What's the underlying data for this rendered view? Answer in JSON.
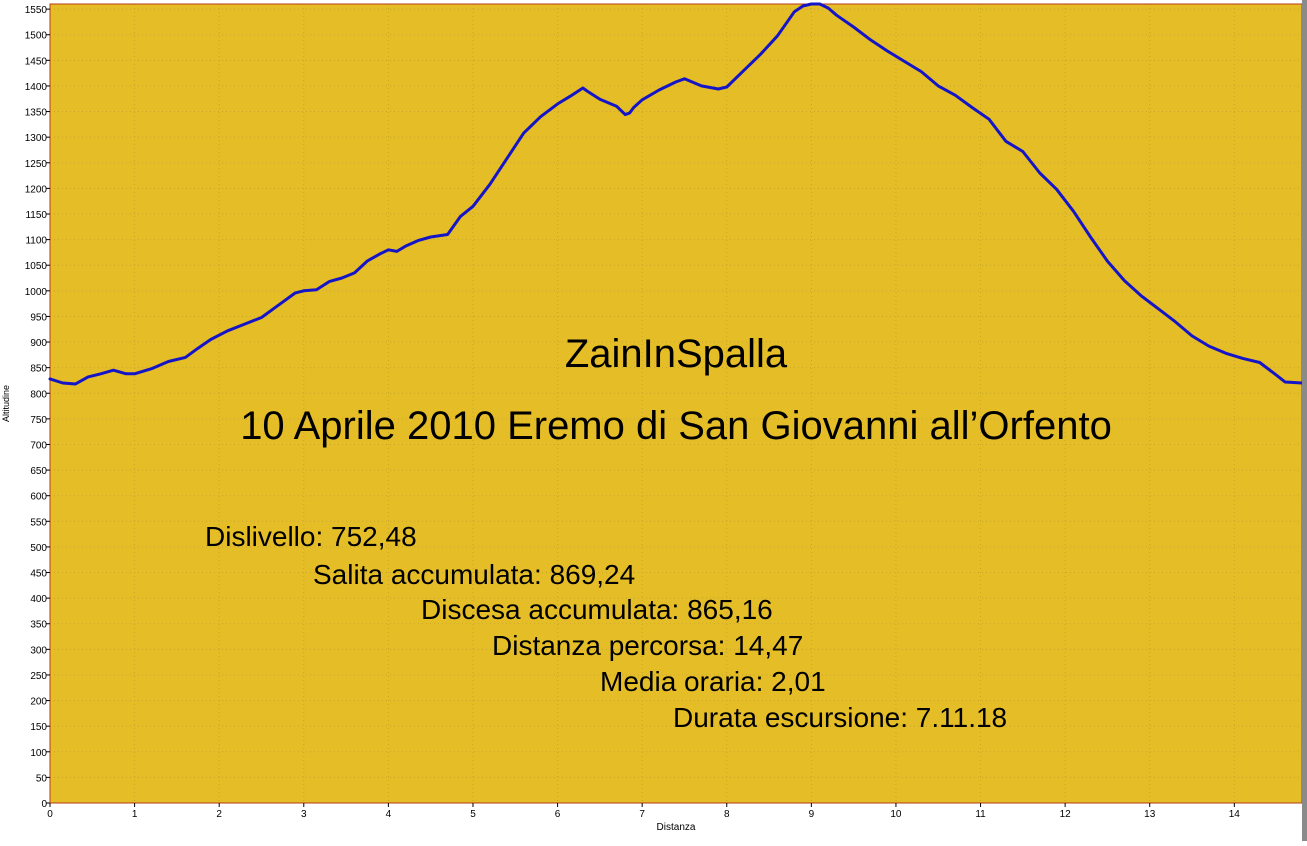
{
  "chart_data": {
    "type": "line",
    "xlabel": "Distanza",
    "ylabel": "Altitudine",
    "xlim": [
      0,
      14.8
    ],
    "ylim": [
      0,
      1560
    ],
    "xticks": [
      0,
      1,
      2,
      3,
      4,
      5,
      6,
      7,
      8,
      9,
      10,
      11,
      12,
      13,
      14
    ],
    "yticks": [
      0,
      50,
      100,
      150,
      200,
      250,
      300,
      350,
      400,
      450,
      500,
      550,
      600,
      650,
      700,
      750,
      800,
      850,
      900,
      950,
      1000,
      1050,
      1100,
      1150,
      1200,
      1250,
      1300,
      1350,
      1400,
      1450,
      1500,
      1550
    ],
    "grid": true,
    "colors": {
      "plot_bg": "#E5BE27",
      "line": "#1515C8",
      "axis": "#B83A1A",
      "grid": "#C9A52A"
    },
    "series": [
      {
        "x": [
          0,
          0.15,
          0.3,
          0.45,
          0.6,
          0.75,
          0.9,
          1.0,
          1.2,
          1.4,
          1.6,
          1.75,
          1.9,
          2.1,
          2.3,
          2.5,
          2.7,
          2.9,
          3.0,
          3.15,
          3.3,
          3.45,
          3.6,
          3.75,
          3.9,
          4.0,
          4.1,
          4.2,
          4.35,
          4.5,
          4.7,
          4.85,
          5.0,
          5.2,
          5.4,
          5.6,
          5.8,
          6.0,
          6.15,
          6.3,
          6.35,
          6.5,
          6.7,
          6.8,
          6.85,
          6.9,
          7.0,
          7.2,
          7.4,
          7.5,
          7.7,
          7.9,
          8.0,
          8.2,
          8.4,
          8.6,
          8.8,
          8.9,
          9.0,
          9.1,
          9.2,
          9.3,
          9.5,
          9.7,
          9.9,
          10.1,
          10.3,
          10.5,
          10.7,
          10.9,
          11.1,
          11.3,
          11.5,
          11.7,
          11.9,
          12.1,
          12.3,
          12.5,
          12.7,
          12.9,
          13.1,
          13.3,
          13.5,
          13.7,
          13.9,
          14.1,
          14.3,
          14.5,
          14.6,
          14.8
        ],
        "y": [
          828,
          820,
          818,
          832,
          838,
          845,
          838,
          838,
          848,
          862,
          870,
          888,
          905,
          922,
          935,
          948,
          972,
          996,
          1000,
          1002,
          1018,
          1025,
          1035,
          1058,
          1072,
          1080,
          1077,
          1087,
          1098,
          1105,
          1110,
          1145,
          1165,
          1208,
          1258,
          1308,
          1340,
          1365,
          1380,
          1396,
          1390,
          1374,
          1360,
          1344,
          1347,
          1358,
          1373,
          1392,
          1408,
          1414,
          1400,
          1394,
          1398,
          1430,
          1462,
          1498,
          1545,
          1556,
          1560,
          1560,
          1552,
          1538,
          1515,
          1490,
          1468,
          1448,
          1428,
          1400,
          1382,
          1358,
          1335,
          1292,
          1272,
          1230,
          1198,
          1155,
          1105,
          1058,
          1020,
          990,
          965,
          940,
          912,
          892,
          878,
          868,
          860,
          835,
          822,
          820
        ]
      }
    ]
  },
  "overlay": {
    "title": "ZainInSpalla",
    "subtitle": "10 Aprile 2010 Eremo di San Giovanni all’Orfento",
    "stats": [
      "Dislivello: 752,48",
      "Salita accumulata: 869,24",
      "Discesa accumulata: 865,16",
      "Distanza percorsa: 14,47",
      "Media oraria: 2,01",
      "Durata escursione: 7.11.18"
    ]
  }
}
